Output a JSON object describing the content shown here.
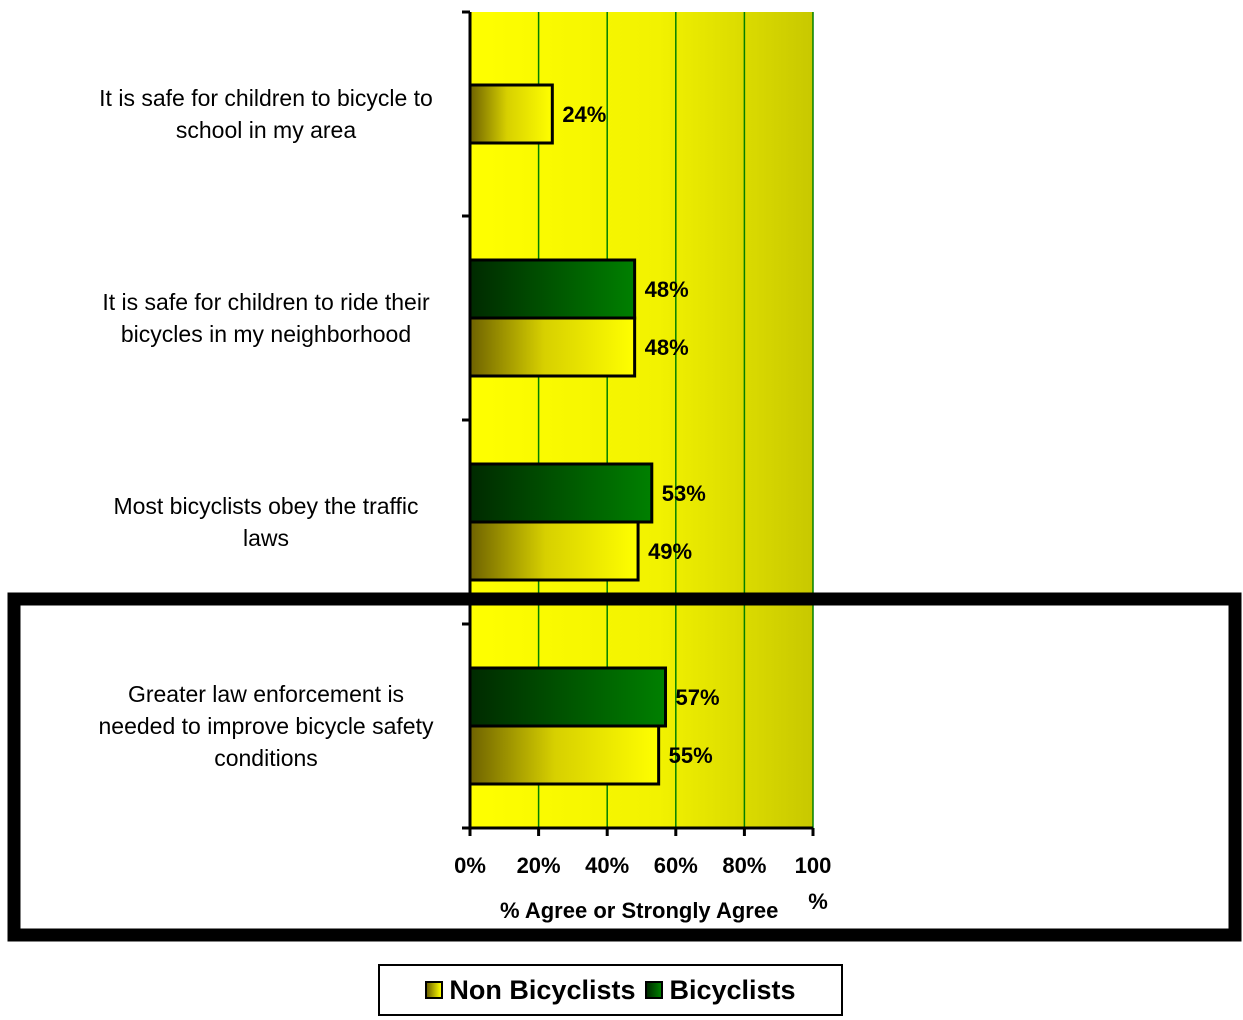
{
  "chart_data": {
    "type": "bar",
    "orientation": "horizontal",
    "categories": [
      [
        "It is safe for children to bicycle to",
        "school in my area"
      ],
      [
        "It is safe for children to ride their",
        "bicycles in my neighborhood"
      ],
      [
        "Most bicyclists obey the traffic",
        "laws"
      ],
      [
        "Greater law enforcement is",
        "needed to improve bicycle safety",
        "conditions"
      ]
    ],
    "series": [
      {
        "name": "Non Bicyclists",
        "values": [
          24,
          48,
          49,
          55
        ],
        "labels": [
          "24%",
          "48%",
          "49%",
          "55%"
        ]
      },
      {
        "name": "Bicyclists",
        "values": [
          null,
          48,
          53,
          57
        ],
        "labels": [
          "",
          "48%",
          "53%",
          "57%"
        ]
      }
    ],
    "xlim": [
      0,
      100
    ],
    "xticks": [
      "0%",
      "20%",
      "40%",
      "60%",
      "80%",
      "100%"
    ],
    "xlabel": "% Agree or Strongly Agree",
    "grid": true,
    "legend": "bottom",
    "highlight_category": 3,
    "colors": {
      "background": "#ffff00",
      "background_edge": "#cccc00",
      "non_bicyclists": "#ffff00",
      "non_bicyclists_dark": "#6e6200",
      "bicyclists": "#008000",
      "bicyclists_dark": "#003300",
      "gridline": "#008000"
    }
  },
  "legend": {
    "items": [
      {
        "label": "Non Bicyclists"
      },
      {
        "label": "Bicyclists"
      }
    ]
  }
}
